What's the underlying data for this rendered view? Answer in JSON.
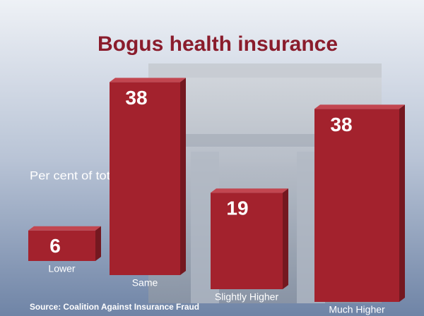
{
  "chart_data": {
    "type": "bar",
    "title": "Bogus health insurance",
    "subtitle": "Per cent of total",
    "source": "Source: Coalition Against Insurance Fraud",
    "categories": [
      "Lower",
      "Same",
      "Slightly Higher",
      "Much Higher"
    ],
    "values": [
      6,
      38,
      19,
      38
    ],
    "color": "#a3222d"
  }
}
